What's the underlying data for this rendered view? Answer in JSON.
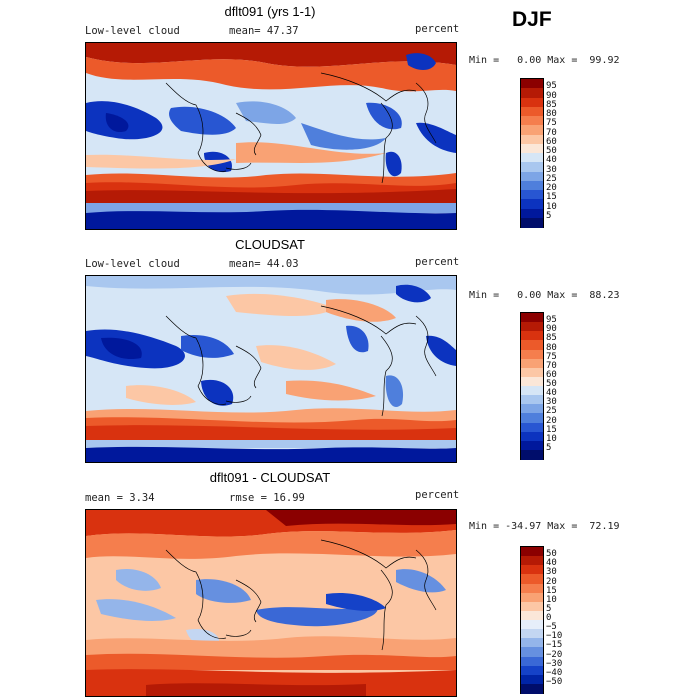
{
  "season": "DJF",
  "panels": [
    {
      "title": "dflt091 (yrs 1-1)",
      "left_label": "Low-level cloud",
      "mid_label": "mean=  47.37",
      "right_label": "percent",
      "minmax": "Min =   0.00 Max =  99.92",
      "colorbar_labels": [
        "95",
        "90",
        "85",
        "80",
        "75",
        "70",
        "60",
        "50",
        "40",
        "30",
        "25",
        "20",
        "15",
        "10",
        "5"
      ],
      "colors": [
        "#8b0000",
        "#b51a05",
        "#d9320f",
        "#ec5a2a",
        "#f57e4d",
        "#f9a274",
        "#fcc7a5",
        "#fbe7d8",
        "#d6e6f6",
        "#a9c7ef",
        "#7da5e6",
        "#4f7fdc",
        "#2856d2",
        "#0c33bf",
        "#00189c",
        "#000d6b"
      ]
    },
    {
      "title": "CLOUDSAT",
      "left_label": "Low-level cloud",
      "mid_label": "mean=  44.03",
      "right_label": "percent",
      "minmax": "Min =   0.00 Max =  88.23",
      "colorbar_labels": [
        "95",
        "90",
        "85",
        "80",
        "75",
        "70",
        "60",
        "50",
        "40",
        "30",
        "25",
        "20",
        "15",
        "10",
        "5"
      ],
      "colors": [
        "#8b0000",
        "#b51a05",
        "#d9320f",
        "#ec5a2a",
        "#f57e4d",
        "#f9a274",
        "#fcc7a5",
        "#fbe7d8",
        "#d6e6f6",
        "#a9c7ef",
        "#7da5e6",
        "#4f7fdc",
        "#2856d2",
        "#0c33bf",
        "#00189c",
        "#000d6b"
      ]
    },
    {
      "title": "dflt091 - CLOUDSAT",
      "left_label": "mean =    3.34",
      "mid_label": "rmse =   16.99",
      "right_label": "percent",
      "minmax": "Min = -34.97 Max =  72.19",
      "colorbar_labels": [
        "50",
        "40",
        "30",
        "20",
        "15",
        "10",
        "5",
        "0",
        "−5",
        "−10",
        "−15",
        "−20",
        "−30",
        "−40",
        "−50"
      ],
      "colors": [
        "#8b0000",
        "#b51a05",
        "#d9320f",
        "#ec5a2a",
        "#f57e4d",
        "#f9a274",
        "#fcc7a5",
        "#fbe7d8",
        "#e6eefa",
        "#c3d6f2",
        "#94b5ea",
        "#6690e0",
        "#3a68d6",
        "#1542c8",
        "#0024a6",
        "#000d6b"
      ]
    }
  ]
}
